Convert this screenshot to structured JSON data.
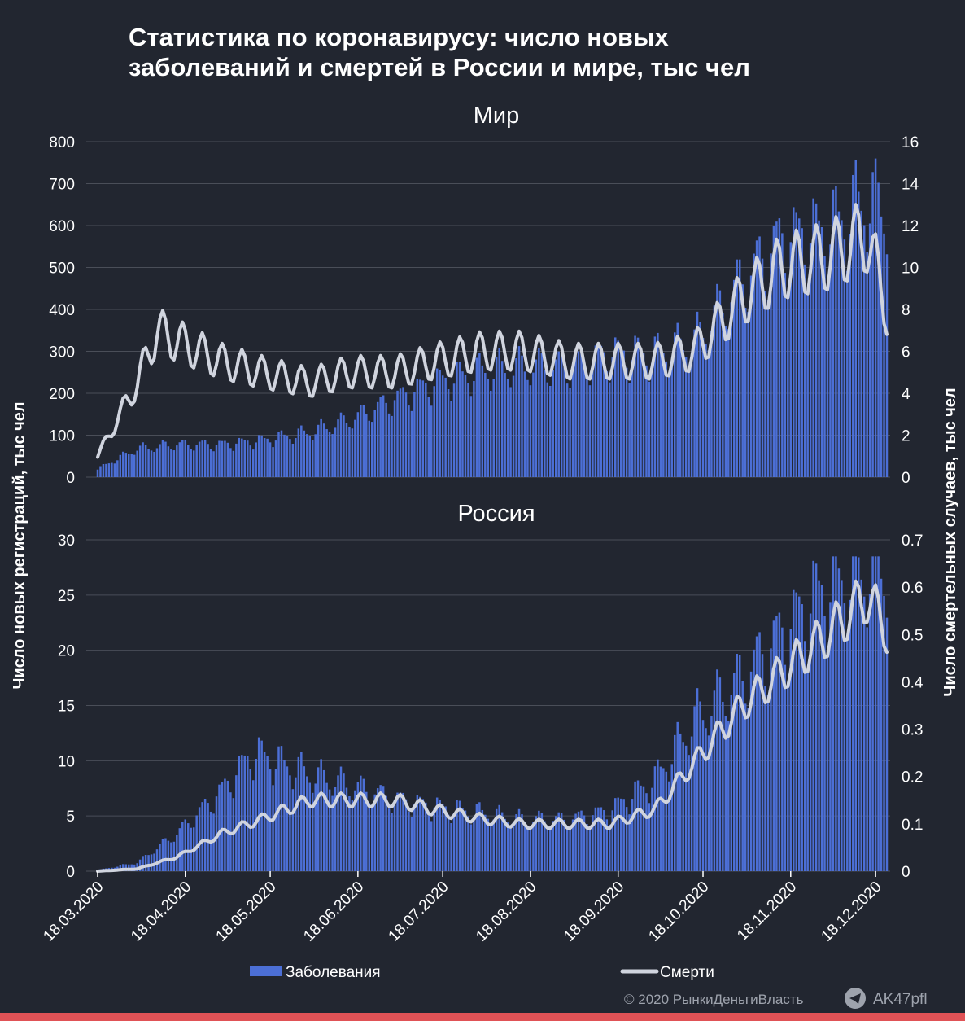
{
  "title_line1": "Статистика по коронавирусу: число новых",
  "title_line2": "заболеваний и смертей в России и мире, тыс чел",
  "y_left_label": "Число новых регистраций, тыс чел",
  "y_right_label": "Число смертельных случаев, тыс чел",
  "legend": {
    "cases": "Заболевания",
    "deaths": "Смерти"
  },
  "footer": {
    "copyright": "© 2020  РынкиДеньгиВласть",
    "channel": "AK47pfl",
    "channel_icon": "telegram-icon"
  },
  "colors": {
    "background": "#222630",
    "bars": "#4c6fd6",
    "line": "#d0d4de",
    "grid": "#4a4e58",
    "accent": "#e05256"
  },
  "chart_data": [
    {
      "type": "bar+line",
      "title": "Мир",
      "x_tick_labels": [
        "18.03.2020",
        "18.04.2020",
        "18.05.2020",
        "18.06.2020",
        "18.07.2020",
        "18.08.2020",
        "18.09.2020",
        "18.10.2020",
        "18.11.2020",
        "18.12.2020"
      ],
      "y_left_ticks": [
        "0",
        "100",
        "200",
        "300",
        "400",
        "500",
        "600",
        "700",
        "800"
      ],
      "y_left_range": [
        0,
        800
      ],
      "y_right_ticks": [
        "0",
        "2",
        "4",
        "6",
        "8",
        "10",
        "12",
        "14",
        "16"
      ],
      "y_right_range": [
        0,
        16
      ],
      "series": [
        {
          "name": "Заболевания",
          "axis": "left",
          "kind": "bar",
          "dates": [
            "18.03.2020",
            "01.04.2020",
            "15.04.2020",
            "01.05.2020",
            "15.05.2020",
            "01.06.2020",
            "15.06.2020",
            "01.07.2020",
            "15.07.2020",
            "01.08.2020",
            "15.08.2020",
            "01.09.2020",
            "15.09.2020",
            "01.10.2020",
            "15.10.2020",
            "01.11.2020",
            "15.11.2020",
            "01.12.2020",
            "15.12.2020",
            "22.12.2020"
          ],
          "values": [
            20,
            70,
            80,
            80,
            90,
            110,
            140,
            190,
            230,
            260,
            270,
            270,
            300,
            300,
            330,
            480,
            580,
            600,
            680,
            660
          ]
        },
        {
          "name": "Смерти",
          "axis": "right",
          "kind": "line",
          "dates": [
            "18.03.2020",
            "01.04.2020",
            "08.04.2020",
            "15.04.2020",
            "01.05.2020",
            "15.05.2020",
            "01.06.2020",
            "15.06.2020",
            "01.07.2020",
            "15.07.2020",
            "01.08.2020",
            "15.08.2020",
            "01.09.2020",
            "15.09.2020",
            "01.10.2020",
            "15.10.2020",
            "01.11.2020",
            "15.11.2020",
            "01.12.2020",
            "15.12.2020",
            "22.12.2020"
          ],
          "values": [
            1.0,
            4.5,
            7.0,
            6.5,
            5.5,
            5.0,
            4.5,
            5.0,
            5.0,
            5.5,
            6.0,
            6.0,
            5.5,
            5.5,
            5.5,
            6.0,
            8.5,
            10.0,
            10.5,
            11.5,
            8.0
          ]
        }
      ]
    },
    {
      "type": "bar+line",
      "title": "Россия",
      "x_tick_labels": [
        "18.03.2020",
        "18.04.2020",
        "18.05.2020",
        "18.06.2020",
        "18.07.2020",
        "18.08.2020",
        "18.09.2020",
        "18.10.2020",
        "18.11.2020",
        "18.12.2020"
      ],
      "y_left_ticks": [
        "0",
        "5",
        "10",
        "15",
        "20",
        "25",
        "30"
      ],
      "y_left_range": [
        0,
        30
      ],
      "y_right_ticks": [
        "0",
        "0.1",
        "0.2",
        "0.3",
        "0.4",
        "0.5",
        "0.6",
        "0.7"
      ],
      "y_right_range": [
        0,
        0.7
      ],
      "series": [
        {
          "name": "Заболевания",
          "axis": "left",
          "kind": "bar",
          "dates": [
            "18.03.2020",
            "01.04.2020",
            "15.04.2020",
            "01.05.2020",
            "12.05.2020",
            "01.06.2020",
            "15.06.2020",
            "01.07.2020",
            "15.07.2020",
            "01.08.2020",
            "15.08.2020",
            "01.09.2020",
            "15.09.2020",
            "01.10.2020",
            "15.10.2020",
            "01.11.2020",
            "15.11.2020",
            "01.12.2020",
            "15.12.2020",
            "22.12.2020"
          ],
          "values": [
            0.1,
            0.8,
            3.5,
            7.5,
            11.0,
            9.0,
            8.0,
            6.7,
            6.0,
            5.4,
            4.8,
            4.8,
            5.6,
            8.5,
            14.0,
            18.0,
            22.0,
            26.5,
            28.0,
            28.5
          ]
        },
        {
          "name": "Смерти",
          "axis": "right",
          "kind": "line",
          "dates": [
            "18.03.2020",
            "01.04.2020",
            "15.04.2020",
            "01.05.2020",
            "15.05.2020",
            "01.06.2020",
            "15.06.2020",
            "01.07.2020",
            "15.07.2020",
            "01.08.2020",
            "15.08.2020",
            "01.09.2020",
            "15.09.2020",
            "01.10.2020",
            "15.10.2020",
            "01.11.2020",
            "15.11.2020",
            "01.12.2020",
            "15.12.2020",
            "22.12.2020"
          ],
          "values": [
            0.0,
            0.005,
            0.03,
            0.08,
            0.11,
            0.15,
            0.15,
            0.15,
            0.13,
            0.11,
            0.1,
            0.1,
            0.1,
            0.13,
            0.23,
            0.35,
            0.42,
            0.5,
            0.58,
            0.51
          ]
        }
      ]
    }
  ]
}
